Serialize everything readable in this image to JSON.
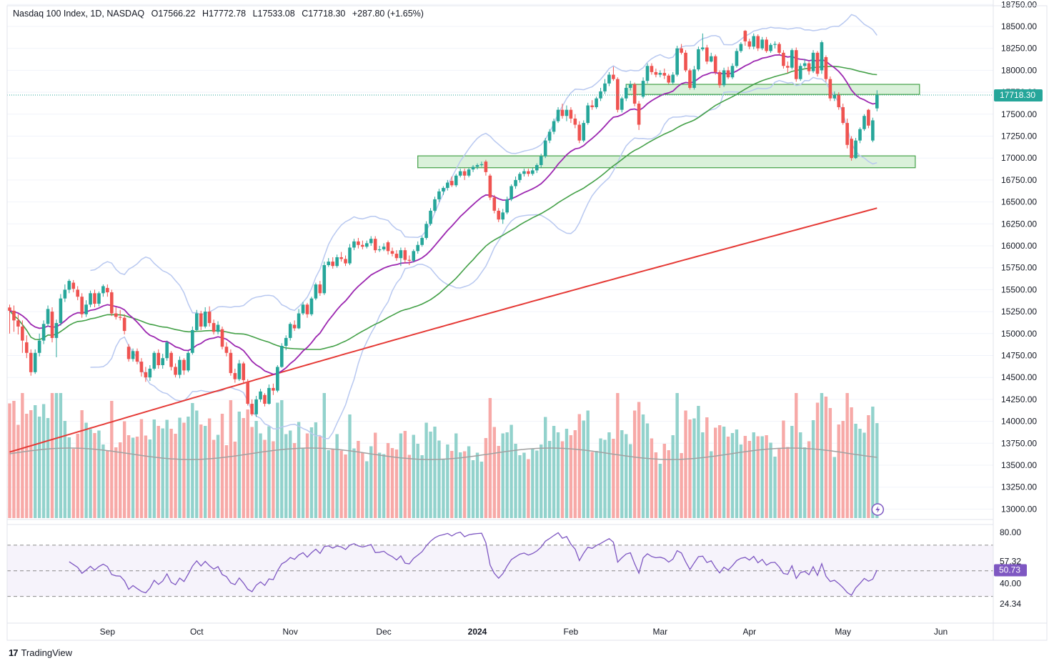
{
  "header": {
    "symbol": "Nasdaq 100 Index, 1D, NASDAQ",
    "open": "O17566.22",
    "high": "H17772.78",
    "low": "L17533.08",
    "close": "C17718.30",
    "change": "+287.80 (+1.65%)"
  },
  "brand": {
    "logo": "17",
    "name": "TradingView"
  },
  "colors": {
    "up": "#26a69a",
    "down": "#ef5350",
    "upVol": "#92d2cc",
    "downVol": "#f7a9a7",
    "ema20": "#9c27b0",
    "sma50": "#43a047",
    "sma200": "#e53935",
    "bands": "#b8c8f0",
    "zone_fill": "#d3efd3",
    "zone_stroke": "#43a047",
    "rsi": "#7e57c2"
  },
  "price_axis": {
    "labels": [
      "18750.00",
      "18500.00",
      "18250.00",
      "18000.00",
      "17750.00",
      "17500.00",
      "17250.00",
      "17000.00",
      "16750.00",
      "16500.00",
      "16250.00",
      "16000.00",
      "15750.00",
      "15500.00",
      "15250.00",
      "15000.00",
      "14750.00",
      "14500.00",
      "14250.00",
      "14000.00",
      "13750.00",
      "13500.00",
      "13250.00",
      "13000.00"
    ],
    "last_price": "17718.30"
  },
  "rsi_axis": {
    "labels": [
      "80.00",
      "57.32",
      "40.00",
      "24.34"
    ],
    "current": "50.73"
  },
  "time_axis": {
    "labels": [
      "Sep",
      "Oct",
      "Nov",
      "Dec",
      "2024",
      "Feb",
      "Mar",
      "Apr",
      "May",
      "Jun"
    ]
  },
  "chart_data": {
    "type": "candlestick",
    "title": "Nasdaq 100 Index, 1D, NASDAQ",
    "ylim": [
      12950,
      18780
    ],
    "zones": [
      {
        "from_date": "2024-02-20",
        "to_date": "2024-05-27",
        "low": 17725,
        "high": 17840
      },
      {
        "from_date": "2023-12-13",
        "to_date": "2024-05-24",
        "low": 16890,
        "high": 17025
      }
    ],
    "candles": [
      [
        15297,
        15260,
        15330,
        15000
      ],
      [
        15260,
        15150,
        15320,
        15020
      ],
      [
        15150,
        15080,
        15220,
        14990
      ],
      [
        15080,
        14920,
        15150,
        14780
      ],
      [
        14900,
        14780,
        14980,
        14720
      ],
      [
        14780,
        14560,
        14820,
        14520
      ],
      [
        14560,
        14780,
        14820,
        14540
      ],
      [
        14780,
        14920,
        15000,
        14740
      ],
      [
        14920,
        15110,
        15150,
        14880
      ],
      [
        15110,
        15280,
        15320,
        15080
      ],
      [
        15250,
        14950,
        15300,
        14900
      ],
      [
        14950,
        15120,
        15160,
        14730
      ],
      [
        15120,
        15400,
        15450,
        15090
      ],
      [
        15400,
        15500,
        15560,
        15360
      ],
      [
        15500,
        15600,
        15620,
        15460
      ],
      [
        15580,
        15510,
        15610,
        15470
      ],
      [
        15500,
        15420,
        15540,
        15380
      ],
      [
        15420,
        15220,
        15460,
        15180
      ],
      [
        15220,
        15330,
        15380,
        15190
      ],
      [
        15330,
        15460,
        15490,
        15300
      ],
      [
        15460,
        15340,
        15500,
        15300
      ],
      [
        15340,
        15460,
        15480,
        15310
      ],
      [
        15460,
        15540,
        15560,
        15420
      ],
      [
        15520,
        15470,
        15560,
        15420
      ],
      [
        15470,
        15230,
        15500,
        15200
      ],
      [
        15230,
        15190,
        15300,
        15160
      ],
      [
        15190,
        15180,
        15270,
        15150
      ],
      [
        15180,
        15030,
        15220,
        14990
      ],
      [
        14850,
        14710,
        14880,
        14680
      ],
      [
        14710,
        14800,
        14830,
        14680
      ],
      [
        14800,
        14680,
        14830,
        14650
      ],
      [
        14680,
        14560,
        14720,
        14510
      ],
      [
        14560,
        14500,
        14620,
        14450
      ],
      [
        14500,
        14600,
        14640,
        14460
      ],
      [
        14600,
        14780,
        14800,
        14580
      ],
      [
        14780,
        14640,
        14820,
        14600
      ],
      [
        14640,
        14720,
        14770,
        14600
      ],
      [
        14720,
        14900,
        14920,
        14690
      ],
      [
        14780,
        14620,
        14800,
        14580
      ],
      [
        14620,
        14530,
        14660,
        14500
      ],
      [
        14530,
        14700,
        14740,
        14490
      ],
      [
        14700,
        14580,
        14720,
        14530
      ],
      [
        14580,
        14780,
        14800,
        14560
      ],
      [
        14780,
        15040,
        15080,
        14760
      ],
      [
        15040,
        15230,
        15270,
        15020
      ],
      [
        15230,
        15080,
        15260,
        15040
      ],
      [
        15080,
        15250,
        15300,
        15060
      ],
      [
        15250,
        15120,
        15310,
        15080
      ],
      [
        15120,
        15020,
        15160,
        14990
      ],
      [
        15020,
        15100,
        15140,
        14990
      ],
      [
        15050,
        14850,
        15080,
        14820
      ],
      [
        14850,
        14780,
        14900,
        14740
      ],
      [
        14780,
        14550,
        14820,
        14520
      ],
      [
        14550,
        14480,
        14600,
        14440
      ],
      [
        14480,
        14660,
        14700,
        14460
      ],
      [
        14660,
        14470,
        14680,
        14440
      ],
      [
        14450,
        14200,
        14480,
        14180
      ],
      [
        14200,
        14080,
        14250,
        14060
      ],
      [
        14080,
        14250,
        14290,
        14050
      ],
      [
        14250,
        14340,
        14370,
        14220
      ],
      [
        14300,
        14200,
        14320,
        14170
      ],
      [
        14200,
        14380,
        14420,
        14190
      ],
      [
        14380,
        14350,
        14430,
        14300
      ],
      [
        14350,
        14620,
        14640,
        14330
      ],
      [
        14620,
        14860,
        14890,
        14610
      ],
      [
        14860,
        14950,
        14980,
        14810
      ],
      [
        14950,
        15110,
        15130,
        14920
      ],
      [
        15100,
        15060,
        15150,
        15030
      ],
      [
        15060,
        15230,
        15280,
        15050
      ],
      [
        15230,
        15330,
        15360,
        15210
      ],
      [
        15330,
        15220,
        15350,
        15180
      ],
      [
        15220,
        15400,
        15420,
        15200
      ],
      [
        15400,
        15560,
        15580,
        15380
      ],
      [
        15560,
        15460,
        15600,
        15430
      ],
      [
        15460,
        15780,
        15820,
        15440
      ],
      [
        15780,
        15820,
        15860,
        15760
      ],
      [
        15820,
        15770,
        15870,
        15740
      ],
      [
        15770,
        15870,
        15900,
        15750
      ],
      [
        15870,
        15850,
        15930,
        15820
      ],
      [
        15850,
        15800,
        15890,
        15770
      ],
      [
        15800,
        15980,
        16020,
        15780
      ],
      [
        15980,
        16050,
        16080,
        15950
      ],
      [
        16050,
        16010,
        16090,
        15970
      ],
      [
        16010,
        15990,
        16060,
        15960
      ],
      [
        15990,
        16030,
        16060,
        15970
      ],
      [
        16030,
        16080,
        16110,
        16000
      ],
      [
        16080,
        15950,
        16110,
        15920
      ],
      [
        15950,
        15960,
        16000,
        15930
      ],
      [
        15960,
        15990,
        16030,
        15940
      ],
      [
        16040,
        15940,
        16060,
        15900
      ],
      [
        15940,
        15910,
        15980,
        15880
      ],
      [
        15910,
        15860,
        15950,
        15830
      ],
      [
        15860,
        15950,
        15980,
        15770
      ],
      [
        15950,
        15840,
        15980,
        15800
      ],
      [
        15840,
        15830,
        15890,
        15780
      ],
      [
        15830,
        15940,
        15960,
        15810
      ],
      [
        15940,
        16010,
        16050,
        15910
      ],
      [
        16010,
        16090,
        16110,
        15990
      ],
      [
        16090,
        16250,
        16280,
        16070
      ],
      [
        16250,
        16400,
        16430,
        16230
      ],
      [
        16400,
        16530,
        16560,
        16380
      ],
      [
        16530,
        16620,
        16650,
        16500
      ],
      [
        16620,
        16660,
        16680,
        16580
      ],
      [
        16660,
        16720,
        16750,
        16630
      ],
      [
        16740,
        16690,
        16790,
        16670
      ],
      [
        16690,
        16800,
        16820,
        16670
      ],
      [
        16800,
        16850,
        16880,
        16780
      ],
      [
        16850,
        16800,
        16880,
        16750
      ],
      [
        16800,
        16870,
        16890,
        16780
      ],
      [
        16870,
        16900,
        16920,
        16840
      ],
      [
        16900,
        16920,
        16940,
        16870
      ],
      [
        16920,
        16930,
        16960,
        16900
      ],
      [
        16960,
        16840,
        16980,
        16800
      ],
      [
        16800,
        16550,
        16820,
        16520
      ],
      [
        16550,
        16400,
        16580,
        16370
      ],
      [
        16400,
        16300,
        16430,
        16270
      ],
      [
        16300,
        16380,
        16420,
        16250
      ],
      [
        16380,
        16530,
        16560,
        16360
      ],
      [
        16530,
        16680,
        16700,
        16510
      ],
      [
        16680,
        16750,
        16790,
        16650
      ],
      [
        16750,
        16820,
        16840,
        16720
      ],
      [
        16820,
        16850,
        16880,
        16790
      ],
      [
        16850,
        16820,
        16880,
        16790
      ],
      [
        16820,
        16860,
        16890,
        16800
      ],
      [
        16860,
        16920,
        16940,
        16830
      ],
      [
        16920,
        17020,
        17050,
        16890
      ],
      [
        17020,
        17200,
        17230,
        17000
      ],
      [
        17200,
        17300,
        17330,
        17170
      ],
      [
        17300,
        17420,
        17450,
        17270
      ],
      [
        17420,
        17550,
        17580,
        17400
      ],
      [
        17550,
        17480,
        17620,
        17450
      ],
      [
        17480,
        17550,
        17600,
        17420
      ],
      [
        17550,
        17450,
        17580,
        17400
      ],
      [
        17450,
        17380,
        17500,
        17340
      ],
      [
        17380,
        17200,
        17420,
        17170
      ],
      [
        17200,
        17400,
        17430,
        17180
      ],
      [
        17400,
        17600,
        17630,
        17380
      ],
      [
        17600,
        17580,
        17660,
        17550
      ],
      [
        17580,
        17680,
        17700,
        17560
      ],
      [
        17680,
        17760,
        17800,
        17650
      ],
      [
        17760,
        17850,
        17900,
        17730
      ],
      [
        17850,
        17950,
        17980,
        17820
      ],
      [
        17950,
        17900,
        18040,
        17880
      ],
      [
        17900,
        17550,
        17920,
        17520
      ],
      [
        17550,
        17680,
        17700,
        17520
      ],
      [
        17680,
        17800,
        17840,
        17650
      ],
      [
        17800,
        17840,
        17880,
        17770
      ],
      [
        17840,
        17620,
        17860,
        17590
      ],
      [
        17620,
        17380,
        17650,
        17320
      ],
      [
        17700,
        17880,
        17920,
        17680
      ],
      [
        17880,
        18050,
        18080,
        17850
      ],
      [
        18050,
        17980,
        18080,
        17950
      ],
      [
        17980,
        17950,
        18020,
        17920
      ],
      [
        17950,
        17970,
        18000,
        17920
      ],
      [
        17970,
        17940,
        18020,
        17900
      ],
      [
        17940,
        17860,
        17960,
        17840
      ],
      [
        17860,
        17950,
        17980,
        17840
      ],
      [
        17950,
        18250,
        18280,
        17930
      ],
      [
        18250,
        18200,
        18300,
        18180
      ],
      [
        18200,
        18000,
        18230,
        17980
      ],
      [
        18000,
        17800,
        18020,
        17780
      ],
      [
        17800,
        18010,
        18050,
        17780
      ],
      [
        18010,
        18240,
        18270,
        17990
      ],
      [
        18240,
        18260,
        18420,
        18220
      ],
      [
        18260,
        18100,
        18290,
        18070
      ],
      [
        18100,
        18160,
        18200,
        18090
      ],
      [
        18160,
        17980,
        18180,
        17950
      ],
      [
        17980,
        17830,
        18000,
        17800
      ],
      [
        17830,
        18000,
        18030,
        17810
      ],
      [
        18000,
        17920,
        18040,
        17900
      ],
      [
        17920,
        18050,
        18080,
        17900
      ],
      [
        18050,
        18220,
        18250,
        18030
      ],
      [
        18220,
        18300,
        18320,
        18200
      ],
      [
        18450,
        18330,
        18460,
        18280
      ],
      [
        18330,
        18270,
        18360,
        18240
      ],
      [
        18270,
        18390,
        18420,
        18240
      ],
      [
        18390,
        18250,
        18410,
        18220
      ],
      [
        18250,
        18350,
        18380,
        18230
      ],
      [
        18350,
        18220,
        18380,
        18200
      ],
      [
        18220,
        18290,
        18310,
        18200
      ],
      [
        18290,
        18300,
        18330,
        18250
      ],
      [
        18300,
        18200,
        18320,
        18180
      ],
      [
        18200,
        18050,
        18230,
        18020
      ],
      [
        18050,
        18030,
        18100,
        17970
      ],
      [
        18030,
        18230,
        18250,
        18010
      ],
      [
        18230,
        17900,
        18260,
        17870
      ],
      [
        17900,
        18050,
        18080,
        17880
      ],
      [
        18050,
        18080,
        18130,
        18030
      ],
      [
        18080,
        17990,
        18100,
        17950
      ],
      [
        17990,
        18200,
        18230,
        17970
      ],
      [
        18200,
        17960,
        18220,
        17930
      ],
      [
        18000,
        18320,
        18340,
        17960
      ],
      [
        18150,
        17900,
        18170,
        17870
      ],
      [
        17900,
        17680,
        17930,
        17650
      ],
      [
        17680,
        17720,
        17760,
        17650
      ],
      [
        17720,
        17580,
        17750,
        17550
      ],
      [
        17580,
        17400,
        17620,
        17380
      ],
      [
        17400,
        17150,
        17450,
        17110
      ],
      [
        17220,
        17000,
        17250,
        16970
      ],
      [
        17000,
        17200,
        17230,
        16990
      ],
      [
        17200,
        17330,
        17350,
        17170
      ],
      [
        17330,
        17480,
        17500,
        17310
      ],
      [
        17550,
        17370,
        17560,
        17340
      ],
      [
        17200,
        17430,
        17460,
        17180
      ],
      [
        17566.22,
        17718.3,
        17772.78,
        17533.08
      ]
    ]
  }
}
